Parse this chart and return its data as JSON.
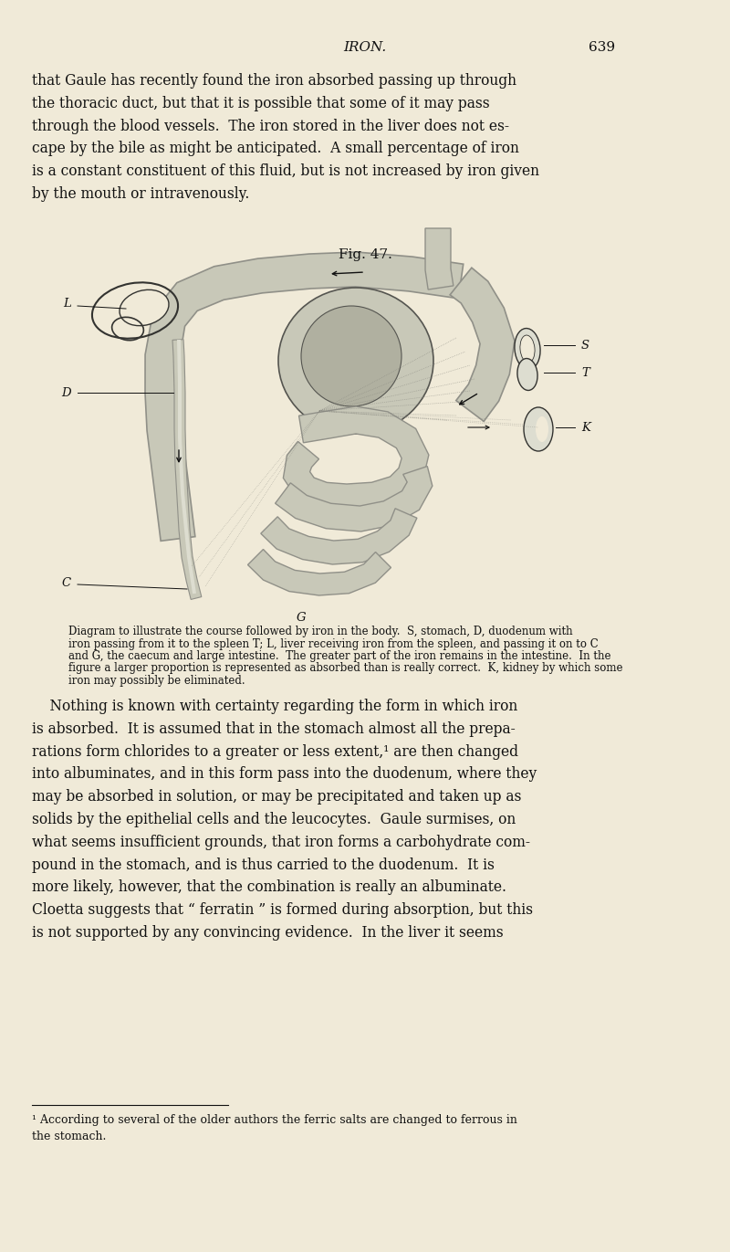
{
  "bg_color": "#f0ead8",
  "page_width": 8.0,
  "page_height": 13.71,
  "header_italic": "IRON.",
  "header_page": "639",
  "top_text": "that Gaule has recently found the iron absorbed passing up through\nthe thoracic duct, but that it is possible that some of it may pass\nthrough the blood vessels.  The iron stored in the liver does not es-\ncape by the bile as might be anticipated.  A small percentage of iron\nis a constant constituent of this fluid, but is not increased by iron given\nby the mouth or intravenously.",
  "fig_caption": "Fig. 47.",
  "diagram_caption_line1": "Diagram to illustrate the course followed by iron in the body.  S, stomach, D, duodenum with",
  "diagram_caption_line2": "iron passing from it to the spleen T; L, liver receiving iron from the spleen, and passing it on to C",
  "diagram_caption_line3": "and G, the caecum and large intestine.  The greater part of the iron remains in the intestine.  In the",
  "diagram_caption_line4": "figure a larger proportion is represented as absorbed than is really correct.  K, kidney by which some",
  "diagram_caption_line5": "iron may possibly be eliminated.",
  "main_text_para": "    Nothing is known with certainty regarding the form in which iron\nis absorbed.  It is assumed that in the stomach almost all the prepa-\nrations form chlorides to a greater or less extent,¹ are then changed\ninto albuminates, and in this form pass into the duodenum, where they\nmay be absorbed in solution, or may be precipitated and taken up as\nsolids by the epithelial cells and the leucocytes.  Gaule surmises, on\nwhat seems insufficient grounds, that iron forms a carbohydrate com-\npound in the stomach, and is thus carried to the duodenum.  It is\nmore likely, however, that the combination is really an albuminate.\nCloetta suggests that “ ferratin ” is formed during absorption, but this\nis not supported by any convincing evidence.  In the liver it seems",
  "footnote": "¹ According to several of the older authors the ferric salts are changed to ferrous in\nthe stomach.",
  "text_color": "#111111",
  "gray_tube": "#c8c8b8",
  "gray_dark": "#909088",
  "gray_light": "#ddddd0",
  "dot_gray": "#b0b0a0"
}
